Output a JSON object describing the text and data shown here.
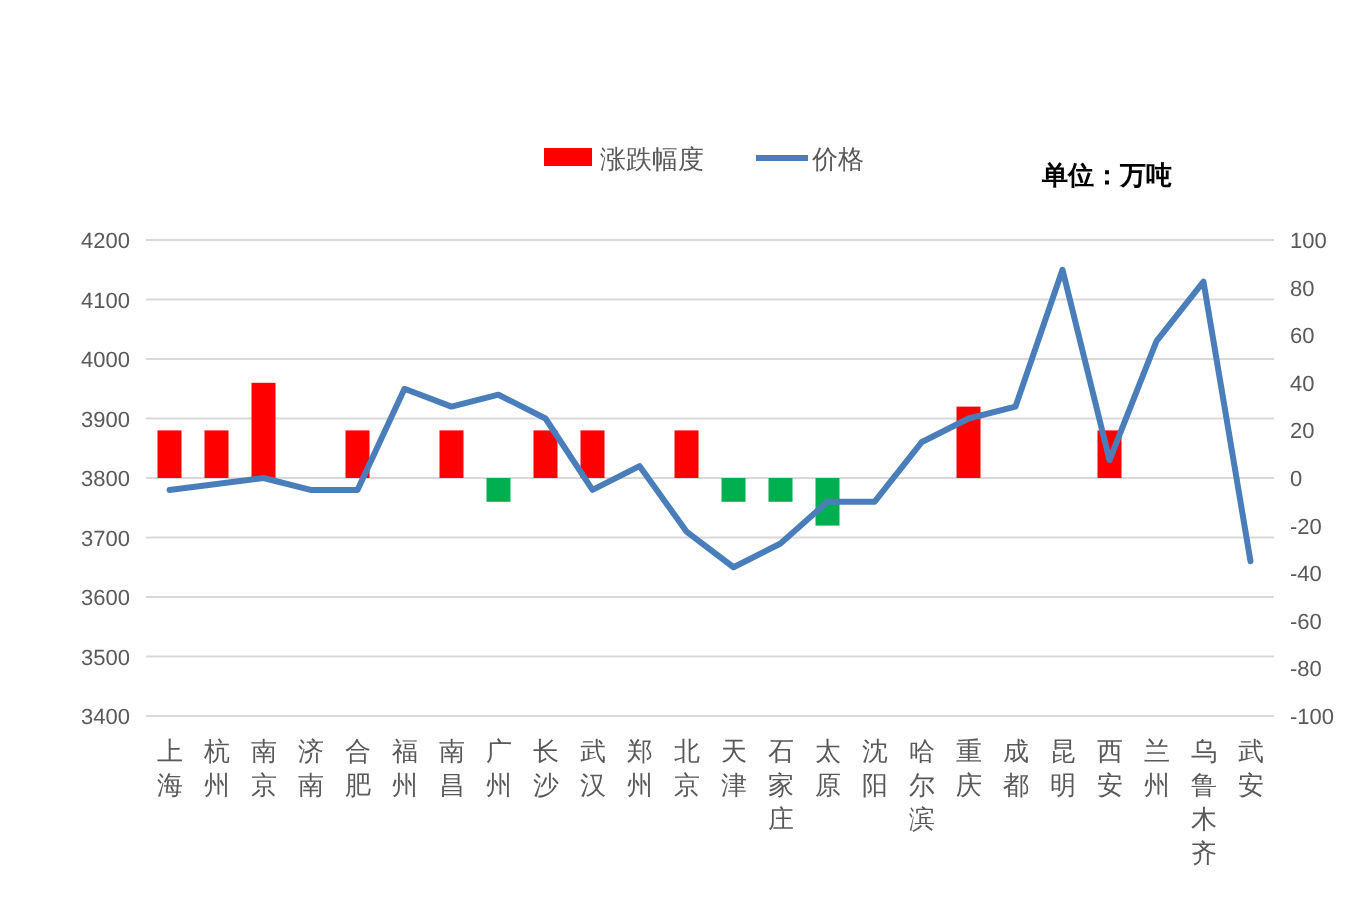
{
  "chart_data": {
    "type": "bar",
    "categories": [
      "上海",
      "杭州",
      "南京",
      "济南",
      "合肥",
      "福州",
      "南昌",
      "广州",
      "长沙",
      "武汉",
      "郑州",
      "北京",
      "天津",
      "石家庄",
      "太原",
      "沈阳",
      "哈尔滨",
      "重庆",
      "成都",
      "昆明",
      "西安",
      "兰州",
      "乌鲁木齐",
      "武安"
    ],
    "series": [
      {
        "name": "涨跌幅度",
        "axis": "y2",
        "color": "#ff0000",
        "colors": [
          "#ff0000",
          "#ff0000",
          "#ff0000",
          "#ff0000",
          "#ff0000",
          "#ff0000",
          "#ff0000",
          "#00b050",
          "#ff0000",
          "#ff0000",
          "#ff0000",
          "#ff0000",
          "#00b050",
          "#00b050",
          "#00b050",
          "#ff0000",
          "#ff0000",
          "#ff0000",
          "#ff0000",
          "#ff0000",
          "#ff0000",
          "#ff0000",
          "#ff0000",
          "#ff0000"
        ],
        "values": [
          20,
          20,
          40,
          0,
          20,
          0,
          20,
          -10,
          20,
          20,
          0,
          20,
          -10,
          -10,
          -20,
          0,
          0,
          30,
          0,
          0,
          20,
          0,
          0,
          0
        ]
      },
      {
        "name": "价格",
        "type": "line",
        "color": "#4a7ebb",
        "values": [
          3780,
          3790,
          3800,
          3780,
          3780,
          3950,
          3920,
          3940,
          3900,
          3780,
          3820,
          3710,
          3650,
          3690,
          3760,
          3760,
          3860,
          3900,
          3920,
          4150,
          3830,
          4030,
          4130,
          3660
        ]
      }
    ],
    "ylim": [
      3400,
      4200
    ],
    "yticks": [
      3400,
      3500,
      3600,
      3700,
      3800,
      3900,
      4000,
      4100,
      4200
    ],
    "y2lim": [
      -100,
      100
    ],
    "y2ticks": [
      -100,
      -80,
      -60,
      -40,
      -20,
      0,
      20,
      40,
      60,
      80,
      100
    ],
    "grid": "y",
    "legend": "top",
    "annotations": [
      "单位：万吨"
    ]
  }
}
